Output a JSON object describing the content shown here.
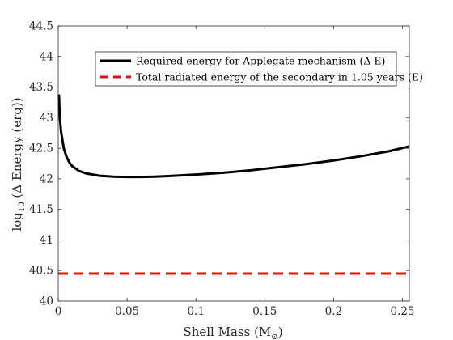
{
  "chart_data": {
    "type": "line",
    "title": "",
    "xlabel": "Shell Mass (M",
    "xlabel_sub": "⊙",
    "xlabel_close": ")",
    "ylabel_prefix": "log",
    "ylabel_sub": "10",
    "ylabel_rest": " (Δ Energy (erg))",
    "xlim": [
      0,
      0.255
    ],
    "ylim": [
      40,
      44.5
    ],
    "x_ticks": [
      0,
      0.05,
      0.1,
      0.15,
      0.2,
      0.25
    ],
    "x_tick_labels": [
      "0",
      "0.05",
      "0.1",
      "0.15",
      "0.2",
      "0.25"
    ],
    "y_ticks": [
      40,
      40.5,
      41,
      41.5,
      42,
      42.5,
      43,
      43.5,
      44,
      44.5
    ],
    "y_tick_labels": [
      "40",
      "40.5",
      "41",
      "41.5",
      "42",
      "42.5",
      "43",
      "43.5",
      "44",
      "44.5"
    ],
    "grid": false,
    "legend_position": "top-right",
    "series": [
      {
        "name": "Required energy for Applegate mechanism (Δ E)",
        "color": "#000000",
        "style": "solid",
        "x": [
          0.0005,
          0.001,
          0.002,
          0.004,
          0.006,
          0.008,
          0.01,
          0.015,
          0.02,
          0.025,
          0.03,
          0.04,
          0.05,
          0.06,
          0.07,
          0.08,
          0.1,
          0.12,
          0.14,
          0.16,
          0.18,
          0.2,
          0.22,
          0.24,
          0.255
        ],
        "y": [
          43.38,
          43.05,
          42.78,
          42.5,
          42.36,
          42.27,
          42.21,
          42.13,
          42.09,
          42.07,
          42.05,
          42.035,
          42.03,
          42.03,
          42.035,
          42.045,
          42.07,
          42.1,
          42.14,
          42.19,
          42.24,
          42.3,
          42.37,
          42.45,
          42.53
        ]
      },
      {
        "name": "Total radiated energy of the secondary in 1.05 years (E)",
        "color": "#ff0000",
        "style": "dashed",
        "x": [
          0,
          0.255
        ],
        "y": [
          40.45,
          40.45
        ]
      }
    ]
  }
}
